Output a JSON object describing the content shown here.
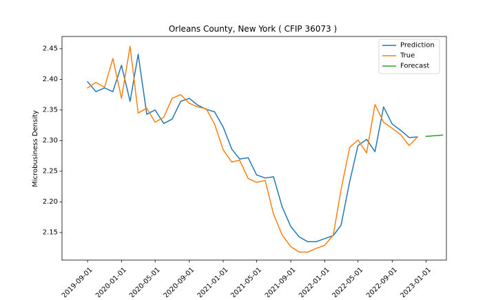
{
  "chart_data": {
    "type": "line",
    "title": "Orleans County, New York ( CFIP 36073 )",
    "xlabel": "",
    "ylabel": "Microbusiness Density",
    "x_ticks": [
      "2019-09-01",
      "2020-01-01",
      "2020-05-01",
      "2020-09-01",
      "2021-01-01",
      "2021-05-01",
      "2021-09-01",
      "2022-01-01",
      "2022-05-01",
      "2022-09-01",
      "2023-01-01"
    ],
    "y_ticks": [
      "2.15",
      "2.20",
      "2.25",
      "2.30",
      "2.35",
      "2.40",
      "2.45"
    ],
    "xlim": [
      "2019-06-01",
      "2023-03-15"
    ],
    "ylim": [
      2.105,
      2.47
    ],
    "grid": false,
    "legend_position": "top-right",
    "series": [
      {
        "name": "Prediction",
        "color": "#1f77b4",
        "x": [
          "2019-09-01",
          "2019-10-01",
          "2019-11-01",
          "2019-12-01",
          "2020-01-01",
          "2020-02-01",
          "2020-03-01",
          "2020-04-01",
          "2020-05-01",
          "2020-06-01",
          "2020-07-01",
          "2020-08-01",
          "2020-09-01",
          "2020-10-01",
          "2020-11-01",
          "2020-12-01",
          "2021-01-01",
          "2021-02-01",
          "2021-03-01",
          "2021-04-01",
          "2021-05-01",
          "2021-06-01",
          "2021-07-01",
          "2021-08-01",
          "2021-09-01",
          "2021-10-01",
          "2021-11-01",
          "2021-12-01",
          "2022-01-01",
          "2022-02-01",
          "2022-03-01",
          "2022-04-01",
          "2022-05-01",
          "2022-06-01",
          "2022-07-01",
          "2022-08-01",
          "2022-09-01",
          "2022-10-01",
          "2022-11-01",
          "2022-12-01"
        ],
        "values": [
          2.396,
          2.38,
          2.386,
          2.38,
          2.423,
          2.364,
          2.441,
          2.343,
          2.35,
          2.328,
          2.335,
          2.364,
          2.369,
          2.358,
          2.351,
          2.347,
          2.322,
          2.286,
          2.27,
          2.272,
          2.244,
          2.239,
          2.241,
          2.192,
          2.16,
          2.143,
          2.135,
          2.135,
          2.14,
          2.145,
          2.162,
          2.233,
          2.292,
          2.302,
          2.282,
          2.355,
          2.327,
          2.317,
          2.305,
          2.306
        ]
      },
      {
        "name": "True",
        "color": "#ff7f0e",
        "x": [
          "2019-09-01",
          "2019-10-01",
          "2019-11-01",
          "2019-12-01",
          "2020-01-01",
          "2020-02-01",
          "2020-03-01",
          "2020-04-01",
          "2020-05-01",
          "2020-06-01",
          "2020-07-01",
          "2020-08-01",
          "2020-09-01",
          "2020-10-01",
          "2020-11-01",
          "2020-12-01",
          "2021-01-01",
          "2021-02-01",
          "2021-03-01",
          "2021-04-01",
          "2021-05-01",
          "2021-06-01",
          "2021-07-01",
          "2021-08-01",
          "2021-09-01",
          "2021-10-01",
          "2021-11-01",
          "2021-12-01",
          "2022-01-01",
          "2022-02-01",
          "2022-03-01",
          "2022-04-01",
          "2022-05-01",
          "2022-06-01",
          "2022-07-01",
          "2022-08-01",
          "2022-09-01",
          "2022-10-01",
          "2022-11-01",
          "2022-12-01"
        ],
        "values": [
          2.386,
          2.395,
          2.387,
          2.434,
          2.369,
          2.454,
          2.345,
          2.353,
          2.33,
          2.338,
          2.369,
          2.375,
          2.361,
          2.355,
          2.352,
          2.327,
          2.285,
          2.265,
          2.268,
          2.238,
          2.232,
          2.235,
          2.18,
          2.146,
          2.127,
          2.118,
          2.118,
          2.124,
          2.129,
          2.146,
          2.22,
          2.289,
          2.301,
          2.28,
          2.359,
          2.33,
          2.32,
          2.31,
          2.292,
          2.306
        ]
      },
      {
        "name": "Forecast",
        "color": "#2ca02c",
        "x": [
          "2023-01-01",
          "2023-02-01",
          "2023-03-01"
        ],
        "values": [
          2.307,
          2.308,
          2.309
        ]
      }
    ]
  }
}
